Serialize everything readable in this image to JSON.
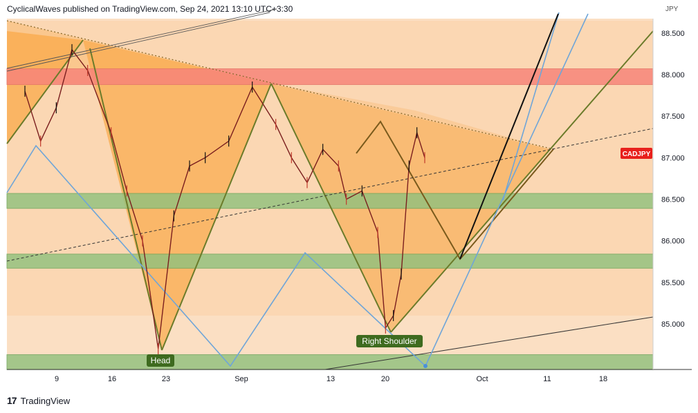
{
  "header": "CyclicalWaves published on TradingView.com, Sep 24, 2021 13:10 UTC+3:30",
  "footer": {
    "brand": "TradingView",
    "logo_mark": "17"
  },
  "chart_data": {
    "type": "candlestick",
    "symbol": "CADJPY",
    "currency": "JPY",
    "title": "",
    "ylim": [
      84.44,
      88.9
    ],
    "y_ticks": [
      "85.000",
      "85.500",
      "86.000",
      "86.500",
      "87.000",
      "87.500",
      "88.000"
    ],
    "y_tick_values": [
      85.0,
      85.5,
      86.0,
      86.5,
      87.0,
      87.5,
      88.0
    ],
    "top_tick_partial": "88.500",
    "x_tick_labels": [
      "9",
      "16",
      "23",
      "Sep",
      "13",
      "20",
      "Oct",
      "11",
      "18"
    ],
    "last_price_label": "CADJPY",
    "annotations": [
      "Head",
      "Right Shoulder"
    ],
    "zones": [
      {
        "kind": "resistance",
        "from": 87.88,
        "to": 88.07,
        "color": "#f7857a"
      },
      {
        "kind": "support",
        "from": 86.39,
        "to": 86.57,
        "color": "#8fc17d"
      },
      {
        "kind": "support",
        "from": 85.67,
        "to": 85.84,
        "color": "#8fc17d"
      },
      {
        "kind": "support",
        "from": 84.45,
        "to": 84.63,
        "color": "#8fc17d"
      }
    ],
    "price_path": [
      {
        "date": "2021-08-05",
        "price": 87.8
      },
      {
        "date": "2021-08-07",
        "price": 87.2
      },
      {
        "date": "2021-08-09",
        "price": 87.6
      },
      {
        "date": "2021-08-11",
        "price": 88.3
      },
      {
        "date": "2021-08-13",
        "price": 88.05
      },
      {
        "date": "2021-08-16",
        "price": 87.3
      },
      {
        "date": "2021-08-18",
        "price": 86.6
      },
      {
        "date": "2021-08-20",
        "price": 86.0
      },
      {
        "date": "2021-08-22",
        "price": 84.7
      },
      {
        "date": "2021-08-24",
        "price": 86.3
      },
      {
        "date": "2021-08-26",
        "price": 86.9
      },
      {
        "date": "2021-08-28",
        "price": 87.0
      },
      {
        "date": "2021-08-31",
        "price": 87.2
      },
      {
        "date": "2021-09-03",
        "price": 87.85
      },
      {
        "date": "2021-09-06",
        "price": 87.4
      },
      {
        "date": "2021-09-08",
        "price": 87.0
      },
      {
        "date": "2021-09-10",
        "price": 86.7
      },
      {
        "date": "2021-09-12",
        "price": 87.1
      },
      {
        "date": "2021-09-14",
        "price": 86.9
      },
      {
        "date": "2021-09-15",
        "price": 86.5
      },
      {
        "date": "2021-09-17",
        "price": 86.6
      },
      {
        "date": "2021-09-19",
        "price": 86.1
      },
      {
        "date": "2021-09-20",
        "price": 84.95
      },
      {
        "date": "2021-09-21",
        "price": 85.1
      },
      {
        "date": "2021-09-22",
        "price": 85.6
      },
      {
        "date": "2021-09-23",
        "price": 86.9
      },
      {
        "date": "2021-09-24",
        "price": 87.3
      },
      {
        "date": "2021-09-25",
        "price": 87.0
      }
    ]
  }
}
